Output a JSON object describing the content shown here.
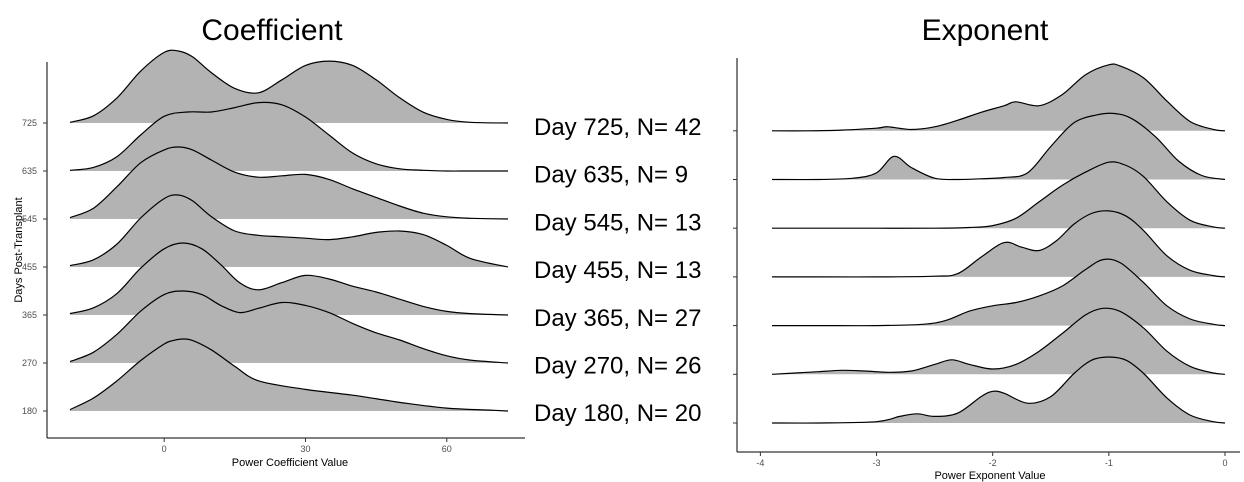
{
  "chart_data": [
    {
      "type": "ridgeline",
      "title": "Coefficient",
      "xlabel": "Power Coefficient Value",
      "ylabel": "Days Post-Transplant",
      "xlim": [
        -20,
        73
      ],
      "xticks": [
        0,
        30,
        60
      ],
      "fill": "#b3b3b3",
      "rows": [
        {
          "label": "180",
          "x": [
            -20,
            -15,
            -10,
            -5,
            0,
            2,
            4,
            6,
            10,
            15,
            20,
            30,
            40,
            50,
            60,
            70,
            73
          ],
          "y": [
            0.02,
            0.18,
            0.42,
            0.7,
            0.93,
            0.98,
            1.0,
            0.98,
            0.85,
            0.62,
            0.42,
            0.3,
            0.22,
            0.12,
            0.04,
            0.01,
            0.0
          ]
        },
        {
          "label": "270",
          "x": [
            -20,
            -15,
            -10,
            -5,
            0,
            4,
            8,
            12,
            16,
            20,
            25,
            30,
            35,
            40,
            45,
            50,
            55,
            60,
            65,
            73
          ],
          "y": [
            0.02,
            0.15,
            0.4,
            0.72,
            0.95,
            1.0,
            0.95,
            0.8,
            0.7,
            0.76,
            0.84,
            0.8,
            0.7,
            0.55,
            0.42,
            0.32,
            0.2,
            0.1,
            0.04,
            0.0
          ]
        },
        {
          "label": "365",
          "x": [
            -20,
            -15,
            -10,
            -5,
            0,
            4,
            8,
            12,
            16,
            20,
            25,
            30,
            35,
            40,
            45,
            50,
            55,
            60,
            65,
            73
          ],
          "y": [
            0.02,
            0.1,
            0.3,
            0.65,
            0.92,
            1.0,
            0.92,
            0.7,
            0.45,
            0.35,
            0.45,
            0.55,
            0.5,
            0.4,
            0.32,
            0.22,
            0.12,
            0.05,
            0.02,
            0.0
          ]
        },
        {
          "label": "455",
          "x": [
            -20,
            -15,
            -10,
            -5,
            0,
            3,
            6,
            10,
            15,
            20,
            25,
            30,
            35,
            40,
            45,
            50,
            55,
            60,
            65,
            73
          ],
          "y": [
            0.02,
            0.1,
            0.32,
            0.68,
            0.95,
            1.0,
            0.92,
            0.7,
            0.5,
            0.44,
            0.42,
            0.4,
            0.38,
            0.42,
            0.48,
            0.5,
            0.45,
            0.3,
            0.12,
            0.0
          ]
        },
        {
          "label": "545",
          "x": [
            -20,
            -15,
            -10,
            -5,
            0,
            3,
            6,
            10,
            15,
            20,
            25,
            30,
            35,
            40,
            45,
            50,
            55,
            60,
            65,
            73
          ],
          "y": [
            0.02,
            0.15,
            0.45,
            0.78,
            0.96,
            1.0,
            0.96,
            0.82,
            0.65,
            0.58,
            0.6,
            0.62,
            0.55,
            0.42,
            0.3,
            0.18,
            0.08,
            0.03,
            0.01,
            0.0
          ]
        },
        {
          "label": "635",
          "x": [
            -20,
            -15,
            -10,
            -5,
            0,
            5,
            10,
            15,
            20,
            25,
            30,
            35,
            40,
            45,
            50,
            55,
            60,
            65,
            73
          ],
          "y": [
            0.01,
            0.05,
            0.2,
            0.5,
            0.76,
            0.82,
            0.82,
            0.88,
            0.95,
            0.92,
            0.75,
            0.5,
            0.25,
            0.1,
            0.03,
            0.01,
            0.0,
            0.0,
            0.0
          ]
        },
        {
          "label": "725",
          "x": [
            -20,
            -15,
            -10,
            -5,
            0,
            3,
            6,
            10,
            15,
            20,
            25,
            30,
            35,
            40,
            45,
            50,
            55,
            60,
            65,
            73
          ],
          "y": [
            0.01,
            0.1,
            0.35,
            0.72,
            0.98,
            1.0,
            0.92,
            0.7,
            0.48,
            0.42,
            0.6,
            0.8,
            0.86,
            0.8,
            0.6,
            0.35,
            0.15,
            0.05,
            0.01,
            0.0
          ]
        }
      ]
    },
    {
      "type": "ridgeline",
      "title": "Exponent",
      "xlabel": "Power Exponent Value",
      "xlim": [
        -3.9,
        0.0
      ],
      "xticks": [
        -4,
        -3,
        -2,
        -1,
        0
      ],
      "fill": "#b3b3b3",
      "rows": [
        {
          "label": "",
          "x": [
            -3.9,
            -3.5,
            -3.0,
            -2.8,
            -2.65,
            -2.5,
            -2.3,
            -2.1,
            -2.0,
            -1.9,
            -1.7,
            -1.5,
            -1.3,
            -1.15,
            -1.0,
            -0.85,
            -0.7,
            -0.5,
            -0.3,
            -0.1,
            0.0
          ],
          "y": [
            0.0,
            0.0,
            0.02,
            0.1,
            0.14,
            0.1,
            0.15,
            0.4,
            0.48,
            0.45,
            0.3,
            0.4,
            0.75,
            0.95,
            1.0,
            0.95,
            0.75,
            0.38,
            0.12,
            0.02,
            0.0
          ]
        },
        {
          "label": "",
          "x": [
            -3.9,
            -3.7,
            -3.5,
            -3.3,
            -3.1,
            -2.9,
            -2.7,
            -2.5,
            -2.35,
            -2.2,
            -2.0,
            -1.8,
            -1.6,
            -1.4,
            -1.2,
            -1.05,
            -0.9,
            -0.7,
            -0.5,
            -0.3,
            -0.1,
            0.0
          ],
          "y": [
            0.0,
            0.02,
            0.04,
            0.06,
            0.05,
            0.03,
            0.05,
            0.15,
            0.22,
            0.15,
            0.08,
            0.15,
            0.35,
            0.62,
            0.9,
            1.0,
            0.95,
            0.7,
            0.35,
            0.12,
            0.02,
            0.0
          ]
        },
        {
          "label": "",
          "x": [
            -3.9,
            -3.5,
            -3.0,
            -2.6,
            -2.4,
            -2.2,
            -2.0,
            -1.8,
            -1.6,
            -1.4,
            -1.2,
            -1.05,
            -0.9,
            -0.7,
            -0.5,
            -0.3,
            -0.1,
            0.0
          ],
          "y": [
            0.0,
            0.0,
            0.0,
            0.02,
            0.08,
            0.22,
            0.3,
            0.35,
            0.45,
            0.6,
            0.85,
            1.0,
            0.95,
            0.65,
            0.3,
            0.1,
            0.02,
            0.0
          ]
        },
        {
          "label": "",
          "x": [
            -3.9,
            -3.5,
            -3.0,
            -2.5,
            -2.3,
            -2.1,
            -1.9,
            -1.75,
            -1.6,
            -1.45,
            -1.3,
            -1.15,
            -1.0,
            -0.85,
            -0.7,
            -0.5,
            -0.3,
            -0.1,
            0.0
          ],
          "y": [
            0.0,
            0.0,
            0.0,
            0.01,
            0.05,
            0.3,
            0.52,
            0.45,
            0.4,
            0.55,
            0.8,
            0.96,
            1.0,
            0.92,
            0.7,
            0.32,
            0.1,
            0.02,
            0.0
          ]
        },
        {
          "label": "",
          "x": [
            -3.9,
            -3.5,
            -3.0,
            -2.5,
            -2.2,
            -2.0,
            -1.8,
            -1.6,
            -1.4,
            -1.2,
            -1.0,
            -0.85,
            -0.7,
            -0.5,
            -0.3,
            -0.1,
            0.0
          ],
          "y": [
            0.0,
            0.0,
            0.0,
            0.0,
            0.01,
            0.04,
            0.15,
            0.4,
            0.65,
            0.85,
            1.0,
            0.95,
            0.78,
            0.4,
            0.12,
            0.02,
            0.0
          ]
        },
        {
          "label": "",
          "x": [
            -3.9,
            -3.5,
            -3.2,
            -3.0,
            -2.85,
            -2.7,
            -2.5,
            -2.3,
            -2.1,
            -1.9,
            -1.7,
            -1.5,
            -1.3,
            -1.1,
            -0.95,
            -0.8,
            -0.6,
            -0.4,
            -0.2,
            0.0
          ],
          "y": [
            0.0,
            0.0,
            0.02,
            0.1,
            0.35,
            0.18,
            0.02,
            0.0,
            0.01,
            0.03,
            0.1,
            0.5,
            0.86,
            0.98,
            1.0,
            0.92,
            0.65,
            0.28,
            0.06,
            0.0
          ]
        },
        {
          "label": "",
          "x": [
            -3.9,
            -3.6,
            -3.3,
            -3.0,
            -2.9,
            -2.7,
            -2.5,
            -2.3,
            -2.1,
            -1.9,
            -1.8,
            -1.6,
            -1.4,
            -1.2,
            -1.0,
            -0.9,
            -0.7,
            -0.5,
            -0.3,
            -0.1,
            0.0
          ],
          "y": [
            0.0,
            0.0,
            0.01,
            0.04,
            0.06,
            0.02,
            0.06,
            0.16,
            0.28,
            0.38,
            0.44,
            0.38,
            0.55,
            0.85,
            1.0,
            0.98,
            0.8,
            0.45,
            0.14,
            0.02,
            0.0
          ]
        }
      ]
    }
  ],
  "annotations": [
    "Day 725, N= 42",
    "Day 635, N= 9",
    "Day 545, N= 13",
    "Day 455, N= 13",
    "Day 365, N= 27",
    "Day 270, N= 26",
    "Day 180, N= 20"
  ]
}
